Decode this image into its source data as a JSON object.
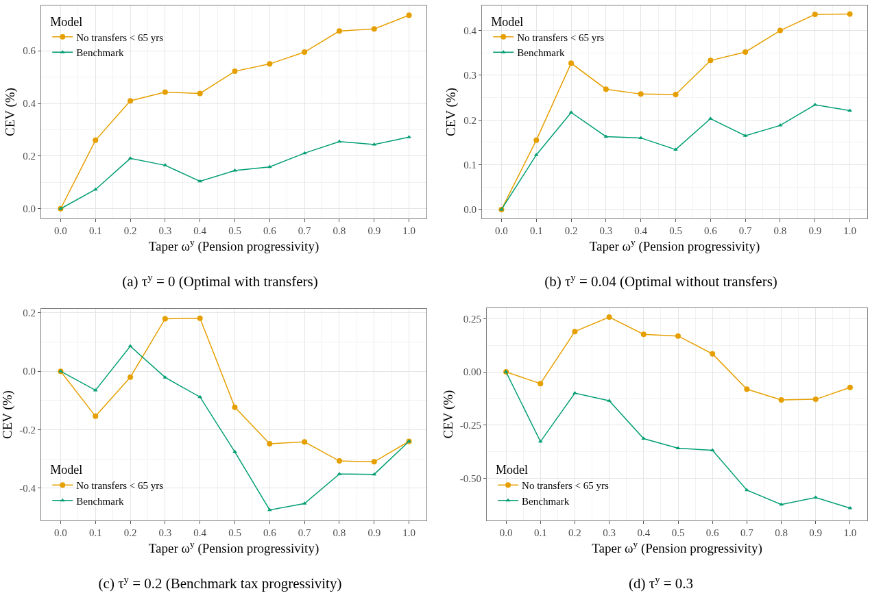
{
  "chart_data": [
    {
      "type": "line",
      "title": "(a) τ$^{y}$ = 0 (Optimal with transfers)",
      "xlabel": "Taper ω$^{y}$ (Pension progressivity)",
      "ylabel": "CEV (%)",
      "legend_title": "Model",
      "legend": "top left",
      "grid": true,
      "line_style": "solid",
      "x": [
        0,
        0.1,
        0.2,
        0.3,
        0.4,
        0.5,
        0.6,
        0.7,
        0.8,
        0.9,
        1.0
      ],
      "xlim": [
        -0.056,
        1.05
      ],
      "xticks": [
        {
          "value": 0,
          "label": "0.0"
        },
        {
          "value": 0.1,
          "label": "0.1"
        },
        {
          "value": 0.2,
          "label": "0.2"
        },
        {
          "value": 0.3,
          "label": "0.3"
        },
        {
          "value": 0.4,
          "label": "0.4"
        },
        {
          "value": 0.5,
          "label": "0.5"
        },
        {
          "value": 0.6,
          "label": "0.6"
        },
        {
          "value": 0.7,
          "label": "0.7"
        },
        {
          "value": 0.8,
          "label": "0.8"
        },
        {
          "value": 0.9,
          "label": "0.9"
        },
        {
          "value": 1.0,
          "label": "1.0"
        }
      ],
      "ylim": [
        -0.037,
        0.772
      ],
      "yticks": [
        {
          "value": 0,
          "label": "0.0"
        },
        {
          "value": 0.2,
          "label": "0.2"
        },
        {
          "value": 0.4,
          "label": "0.4"
        },
        {
          "value": 0.6,
          "label": "0.6"
        }
      ],
      "series": [
        {
          "name": "No transfers < 65 yrs",
          "color": "#e69f00",
          "marker": "circle",
          "values": [
            0,
            0.26,
            0.41,
            0.443,
            0.438,
            0.522,
            0.55,
            0.595,
            0.675,
            0.683,
            0.735
          ]
        },
        {
          "name": "Benchmark",
          "color": "#009e73",
          "marker": "triangle",
          "values": [
            0,
            0.073,
            0.191,
            0.165,
            0.104,
            0.145,
            0.159,
            0.211,
            0.255,
            0.244,
            0.272
          ]
        }
      ]
    },
    {
      "type": "line",
      "title": "(b) τ$^{y}$ = 0.04 (Optimal without transfers)",
      "xlabel": "Taper ω$^{y}$ (Pension progressivity)",
      "ylabel": "CEV (%)",
      "legend_title": "Model",
      "legend": "top left",
      "grid": true,
      "line_style": "solid",
      "x": [
        0,
        0.1,
        0.2,
        0.3,
        0.4,
        0.5,
        0.6,
        0.7,
        0.8,
        0.9,
        1.0
      ],
      "xlim": [
        -0.056,
        1.05
      ],
      "xticks": [
        {
          "value": 0,
          "label": "0.0"
        },
        {
          "value": 0.1,
          "label": "0.1"
        },
        {
          "value": 0.2,
          "label": "0.2"
        },
        {
          "value": 0.3,
          "label": "0.3"
        },
        {
          "value": 0.4,
          "label": "0.4"
        },
        {
          "value": 0.5,
          "label": "0.5"
        },
        {
          "value": 0.6,
          "label": "0.6"
        },
        {
          "value": 0.7,
          "label": "0.7"
        },
        {
          "value": 0.8,
          "label": "0.8"
        },
        {
          "value": 0.9,
          "label": "0.9"
        },
        {
          "value": 1.0,
          "label": "1.0"
        }
      ],
      "ylim": [
        -0.02,
        0.456
      ],
      "yticks": [
        {
          "value": 0,
          "label": "0.0"
        },
        0.1,
        0.2,
        0.3,
        0.4
      ],
      "series": [
        {
          "name": "No transfers < 65 yrs",
          "color": "#e69f00",
          "marker": "circle",
          "values": [
            0,
            0.155,
            0.327,
            0.269,
            0.258,
            0.257,
            0.333,
            0.352,
            0.4,
            0.436,
            0.437
          ]
        },
        {
          "name": "Benchmark",
          "color": "#009e73",
          "marker": "triangle",
          "values": [
            0,
            0.122,
            0.217,
            0.163,
            0.16,
            0.134,
            0.203,
            0.165,
            0.188,
            0.234,
            0.221
          ]
        }
      ]
    },
    {
      "type": "line",
      "title": "(c) τ$^{y}$ = 0.2 (Benchmark tax progressivity)",
      "xlabel": "Taper ω$^{y}$ (Pension progressivity)",
      "ylabel": "CEV (%)",
      "legend_title": "Model",
      "legend": "bottom left",
      "grid": true,
      "line_style": "solid",
      "x": [
        0,
        0.1,
        0.2,
        0.3,
        0.4,
        0.5,
        0.6,
        0.7,
        0.8,
        0.9,
        1.0
      ],
      "xlim": [
        -0.056,
        1.05
      ],
      "xticks": [
        {
          "value": 0,
          "label": "0.0"
        },
        {
          "value": 0.1,
          "label": "0.1"
        },
        {
          "value": 0.2,
          "label": "0.2"
        },
        {
          "value": 0.3,
          "label": "0.3"
        },
        {
          "value": 0.4,
          "label": "0.4"
        },
        {
          "value": 0.5,
          "label": "0.5"
        },
        {
          "value": 0.6,
          "label": "0.6"
        },
        {
          "value": 0.7,
          "label": "0.7"
        },
        {
          "value": 0.8,
          "label": "0.8"
        },
        {
          "value": 0.9,
          "label": "0.9"
        },
        {
          "value": 1.0,
          "label": "1.0"
        }
      ],
      "ylim": [
        -0.511,
        0.214
      ],
      "yticks": [
        {
          "value": -0.4,
          "label": "-0.4"
        },
        {
          "value": -0.2,
          "label": "-0.2"
        },
        {
          "value": 0,
          "label": "0.0"
        },
        0.2
      ],
      "series": [
        {
          "name": "No transfers < 65 yrs",
          "color": "#e69f00",
          "marker": "circle",
          "values": [
            0,
            -0.154,
            -0.02,
            0.18,
            0.182,
            -0.123,
            -0.248,
            -0.242,
            -0.307,
            -0.31,
            -0.24
          ]
        },
        {
          "name": "Benchmark",
          "color": "#009e73",
          "marker": "triangle",
          "values": [
            0,
            -0.065,
            0.086,
            -0.021,
            -0.088,
            -0.276,
            -0.475,
            -0.453,
            -0.352,
            -0.353,
            -0.24
          ]
        }
      ]
    },
    {
      "type": "line",
      "title": "(d) τ$^{y}$ = 0.3",
      "xlabel": "Taper ω$^{y}$ (Pension progressivity)",
      "ylabel": "CEV (%)",
      "legend_title": "Model",
      "legend": "bottom left",
      "grid": true,
      "line_style": "solid",
      "x": [
        0,
        0.1,
        0.2,
        0.3,
        0.4,
        0.5,
        0.6,
        0.7,
        0.8,
        0.9,
        1.0
      ],
      "xlim": [
        -0.056,
        1.05
      ],
      "xticks": [
        {
          "value": 0,
          "label": "0.0"
        },
        {
          "value": 0.1,
          "label": "0.1"
        },
        {
          "value": 0.2,
          "label": "0.2"
        },
        {
          "value": 0.3,
          "label": "0.3"
        },
        {
          "value": 0.4,
          "label": "0.4"
        },
        {
          "value": 0.5,
          "label": "0.5"
        },
        {
          "value": 0.6,
          "label": "0.6"
        },
        {
          "value": 0.7,
          "label": "0.7"
        },
        {
          "value": 0.8,
          "label": "0.8"
        },
        {
          "value": 0.9,
          "label": "0.9"
        },
        {
          "value": 1.0,
          "label": "1.0"
        }
      ],
      "ylim": [
        -0.699,
        0.3
      ],
      "yticks": [
        {
          "value": -0.5,
          "label": "-0.50"
        },
        {
          "value": -0.25,
          "label": "-0.25"
        },
        {
          "value": 0,
          "label": "0.00"
        },
        0.25
      ],
      "series": [
        {
          "name": "No transfers < 65 yrs",
          "color": "#e69f00",
          "marker": "circle",
          "values": [
            0,
            -0.055,
            0.19,
            0.258,
            0.177,
            0.169,
            0.085,
            -0.081,
            -0.132,
            -0.129,
            -0.073
          ]
        },
        {
          "name": "Benchmark",
          "color": "#009e73",
          "marker": "triangle",
          "values": [
            0,
            -0.328,
            -0.1,
            -0.136,
            -0.314,
            -0.359,
            -0.369,
            -0.556,
            -0.624,
            -0.591,
            -0.641
          ]
        }
      ]
    }
  ]
}
